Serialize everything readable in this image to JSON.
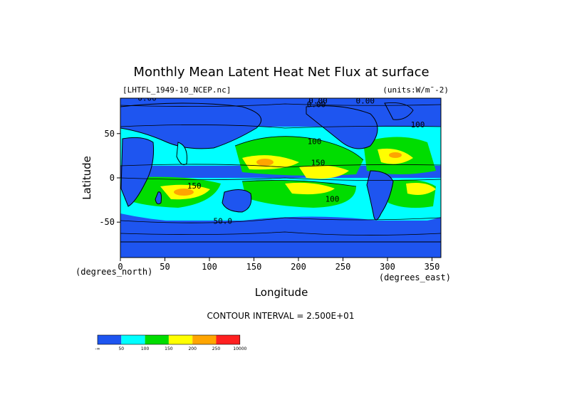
{
  "chart_data": {
    "type": "heatmap",
    "title": "Monthly Mean Latent Heat Net Flux at surface",
    "dataset": "[LHTFL_1949-10_NCEP.nc]",
    "units": "(units:W/m^-2)",
    "xlabel": "Longitude",
    "ylabel": "Latitude",
    "x_units": "(degrees_east)",
    "y_units": "(degrees_north)",
    "xlim": [
      0,
      360
    ],
    "ylim": [
      -90,
      90
    ],
    "x_ticks": [
      0,
      50,
      100,
      150,
      200,
      250,
      300,
      350
    ],
    "y_ticks": [
      -50,
      0,
      50
    ],
    "contour_interval": "CONTOUR INTERVAL = 2.500E+01",
    "contour_labels": [
      {
        "text": "0.00",
        "lon": 30,
        "lat": 87
      },
      {
        "text": "0.00",
        "lon": 222,
        "lat": 84
      },
      {
        "text": "0.00",
        "lon": 275,
        "lat": 84
      },
      {
        "text": "0.00",
        "lon": 220,
        "lat": 80
      },
      {
        "text": "100",
        "lon": 218,
        "lat": 38
      },
      {
        "text": "150",
        "lon": 222,
        "lat": 14
      },
      {
        "text": "150",
        "lon": 83,
        "lat": -12
      },
      {
        "text": "100",
        "lon": 238,
        "lat": -27
      },
      {
        "text": "50.0",
        "lon": 115,
        "lat": -52
      },
      {
        "text": "100",
        "lon": 334,
        "lat": 57
      }
    ],
    "colorbar": {
      "levels": [
        "-∞",
        "50",
        "100",
        "150",
        "200",
        "250",
        "10000"
      ],
      "colors": [
        "#1e55f0",
        "#00ffff",
        "#00dd00",
        "#ffff00",
        "#ffa500",
        "#ff2020"
      ]
    }
  }
}
